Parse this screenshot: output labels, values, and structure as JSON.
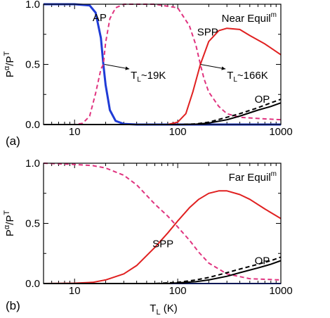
{
  "chart_data": [
    {
      "type": "line",
      "panel_label": "(a)",
      "annotation": {
        "base": "Near Equil",
        "sup": "m"
      },
      "xscale": "log",
      "xlim": [
        5,
        1000
      ],
      "ylim": [
        0,
        1
      ],
      "x_ticks": [
        10,
        100,
        1000
      ],
      "x_tick_labels": [
        "10",
        "100",
        "1000"
      ],
      "y_ticks": [
        0,
        0.5,
        1
      ],
      "y_tick_labels": [
        "0.0",
        "0.5",
        "1.0"
      ],
      "ylabel": {
        "base": "P",
        "sup1": "α",
        "mid": "/P",
        "sup2": "T"
      },
      "xlabel": {
        "base": "",
        "sub": "",
        "rest": ""
      },
      "series": [
        {
          "name": "AP",
          "color": "#1f3bd6",
          "style": "solid",
          "width": 3,
          "x": [
            5,
            10,
            14,
            16,
            18,
            19,
            20,
            22,
            25,
            30,
            40,
            60,
            100,
            1000
          ],
          "y": [
            1.0,
            1.0,
            0.99,
            0.93,
            0.72,
            0.5,
            0.33,
            0.12,
            0.03,
            0.005,
            0,
            0,
            0,
            0
          ]
        },
        {
          "name": "",
          "color": "#e0337f",
          "style": "dashed",
          "width": 2,
          "x": [
            5,
            10,
            12,
            14,
            16,
            18,
            19,
            20,
            22,
            25,
            30,
            40,
            60,
            100,
            130,
            150,
            166,
            180,
            200,
            250,
            300,
            400,
            600,
            1000
          ],
          "y": [
            0,
            0,
            0.01,
            0.07,
            0.26,
            0.46,
            0.5,
            0.68,
            0.88,
            0.97,
            1.0,
            1.0,
            1.0,
            0.97,
            0.82,
            0.66,
            0.5,
            0.38,
            0.27,
            0.15,
            0.09,
            0.06,
            0.05,
            0.04
          ]
        },
        {
          "name": "SPP",
          "color": "#e02020",
          "style": "solid",
          "width": 2,
          "x": [
            5,
            80,
            100,
            120,
            140,
            166,
            200,
            250,
            300,
            400,
            500,
            700,
            1000
          ],
          "y": [
            0,
            0,
            0.02,
            0.09,
            0.27,
            0.5,
            0.69,
            0.78,
            0.8,
            0.79,
            0.74,
            0.67,
            0.58
          ]
        },
        {
          "name": "",
          "color": "#000000",
          "style": "dashed",
          "width": 2,
          "x": [
            5,
            100,
            150,
            200,
            300,
            400,
            600,
            800,
            1000
          ],
          "y": [
            0,
            0,
            0.005,
            0.02,
            0.06,
            0.09,
            0.14,
            0.18,
            0.21
          ]
        },
        {
          "name": "OP",
          "color": "#000000",
          "style": "solid",
          "width": 2,
          "x": [
            5,
            100,
            150,
            200,
            300,
            400,
            600,
            800,
            1000
          ],
          "y": [
            0,
            0,
            0.003,
            0.012,
            0.04,
            0.07,
            0.12,
            0.15,
            0.18
          ]
        }
      ],
      "labels": [
        {
          "text": "AP",
          "x": 17.5,
          "y": 0.89
        },
        {
          "text": "SPP",
          "x": 195,
          "y": 0.77
        },
        {
          "text": "OP",
          "x": 660,
          "y": 0.21
        }
      ],
      "callouts": [
        {
          "base": "T",
          "sub": "L",
          "rest": "~19K",
          "point": [
            19.5,
            0.5
          ],
          "text_at": [
            35,
            0.38
          ]
        },
        {
          "base": "T",
          "sub": "L",
          "rest": "~166K",
          "point": [
            166,
            0.5
          ],
          "text_at": [
            300,
            0.38
          ]
        }
      ]
    },
    {
      "type": "line",
      "panel_label": "(b)",
      "annotation": {
        "base": "Far Equil",
        "sup": "m"
      },
      "xscale": "log",
      "xlim": [
        5,
        1000
      ],
      "ylim": [
        0,
        1
      ],
      "x_ticks": [
        10,
        100,
        1000
      ],
      "x_tick_labels": [
        "10",
        "100",
        "1000"
      ],
      "y_ticks": [
        0,
        0.5,
        1
      ],
      "y_tick_labels": [
        "0.0",
        "0.5",
        "1.0"
      ],
      "ylabel": {
        "base": "P",
        "sup1": "α",
        "mid": "/P",
        "sup2": "T"
      },
      "xlabel": {
        "base": "T",
        "sub": "L",
        "rest": " (K)"
      },
      "series": [
        {
          "name": "",
          "color": "#1f3bd6",
          "style": "solid",
          "width": 2,
          "x": [
            5,
            1000
          ],
          "y": [
            0,
            0
          ]
        },
        {
          "name": "",
          "color": "#e0337f",
          "style": "dashed",
          "width": 2,
          "x": [
            5,
            10,
            15,
            20,
            30,
            40,
            60,
            80,
            100,
            130,
            160,
            200,
            300,
            500,
            1000
          ],
          "y": [
            1.0,
            0.99,
            0.98,
            0.96,
            0.9,
            0.82,
            0.66,
            0.56,
            0.47,
            0.36,
            0.26,
            0.17,
            0.08,
            0.04,
            0.03
          ]
        },
        {
          "name": "SPP",
          "color": "#e02020",
          "style": "solid",
          "width": 2,
          "x": [
            5,
            10,
            15,
            20,
            30,
            40,
            60,
            80,
            100,
            130,
            160,
            200,
            250,
            300,
            400,
            500,
            700,
            1000
          ],
          "y": [
            0,
            0.003,
            0.01,
            0.03,
            0.08,
            0.15,
            0.3,
            0.42,
            0.52,
            0.63,
            0.7,
            0.75,
            0.77,
            0.77,
            0.74,
            0.7,
            0.62,
            0.54
          ]
        },
        {
          "name": "",
          "color": "#000000",
          "style": "dashed",
          "width": 2,
          "x": [
            5,
            60,
            100,
            150,
            200,
            300,
            400,
            600,
            800,
            1000
          ],
          "y": [
            0,
            0,
            0.01,
            0.03,
            0.05,
            0.09,
            0.12,
            0.16,
            0.19,
            0.22
          ]
        },
        {
          "name": "OP",
          "color": "#000000",
          "style": "solid",
          "width": 2,
          "x": [
            5,
            80,
            100,
            150,
            200,
            300,
            400,
            600,
            800,
            1000
          ],
          "y": [
            0,
            0,
            0.005,
            0.015,
            0.03,
            0.06,
            0.09,
            0.13,
            0.16,
            0.19
          ]
        }
      ],
      "labels": [
        {
          "text": "SPP",
          "x": 72,
          "y": 0.33
        },
        {
          "text": "OP",
          "x": 660,
          "y": 0.19
        }
      ],
      "callouts": []
    }
  ]
}
